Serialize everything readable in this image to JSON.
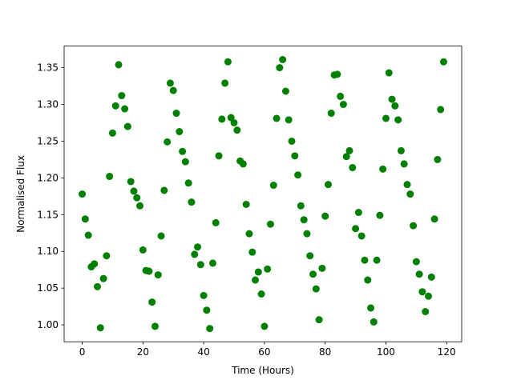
{
  "chart_data": {
    "type": "scatter",
    "xlabel": "Time (Hours)",
    "ylabel": "Normalised Flux",
    "color": "#008000",
    "xlim": [
      -5.95,
      124.95
    ],
    "ylim": [
      0.977,
      1.3794
    ],
    "xticks": [
      0,
      20,
      40,
      60,
      80,
      100,
      120
    ],
    "yticks": [
      {
        "value": 1.0,
        "label": "1.00"
      },
      {
        "value": 1.05,
        "label": "1.05"
      },
      {
        "value": 1.1,
        "label": "1.10"
      },
      {
        "value": 1.15,
        "label": "1.15"
      },
      {
        "value": 1.2,
        "label": "1.20"
      },
      {
        "value": 1.25,
        "label": "1.25"
      },
      {
        "value": 1.3,
        "label": "1.30"
      },
      {
        "value": 1.35,
        "label": "1.35"
      }
    ],
    "x": [
      0,
      1,
      2,
      3,
      4,
      5,
      6,
      7,
      8,
      9,
      10,
      11,
      12,
      13,
      14,
      15,
      16,
      17,
      18,
      19,
      20,
      21,
      22,
      23,
      24,
      25,
      26,
      27,
      28,
      29,
      30,
      31,
      32,
      33,
      34,
      35,
      36,
      37,
      38,
      39,
      40,
      41,
      42,
      43,
      44,
      45,
      46,
      47,
      48,
      49,
      50,
      51,
      52,
      53,
      54,
      55,
      56,
      57,
      58,
      59,
      60,
      61,
      62,
      63,
      64,
      65,
      66,
      67,
      68,
      69,
      70,
      71,
      72,
      73,
      74,
      75,
      76,
      77,
      78,
      79,
      80,
      81,
      82,
      83,
      84,
      85,
      86,
      87,
      88,
      89,
      90,
      91,
      92,
      93,
      94,
      95,
      96,
      97,
      98,
      99,
      100,
      101,
      102,
      103,
      104,
      105,
      106,
      107,
      108,
      109,
      110,
      111,
      112,
      113,
      114,
      115,
      116,
      117,
      118,
      119
    ],
    "values": [
      1.178,
      1.144,
      1.122,
      1.079,
      1.083,
      1.052,
      0.996,
      1.063,
      1.094,
      1.202,
      1.261,
      1.298,
      1.354,
      1.312,
      1.294,
      1.27,
      1.195,
      1.182,
      1.173,
      1.162,
      1.102,
      1.074,
      1.073,
      1.031,
      0.998,
      1.068,
      1.121,
      1.183,
      1.249,
      1.329,
      1.319,
      1.288,
      1.263,
      1.236,
      1.222,
      1.193,
      1.167,
      1.096,
      1.106,
      1.082,
      1.04,
      1.02,
      0.995,
      1.084,
      1.139,
      1.23,
      1.28,
      1.329,
      1.358,
      1.282,
      1.275,
      1.265,
      1.223,
      1.219,
      1.164,
      1.124,
      1.099,
      1.061,
      1.072,
      1.042,
      0.998,
      1.076,
      1.137,
      1.19,
      1.281,
      1.35,
      1.361,
      1.318,
      1.279,
      1.25,
      1.23,
      1.204,
      1.162,
      1.143,
      1.124,
      1.094,
      1.069,
      1.049,
      1.007,
      1.077,
      1.148,
      1.191,
      1.288,
      1.34,
      1.341,
      1.311,
      1.3,
      1.229,
      1.237,
      1.214,
      1.131,
      1.153,
      1.121,
      1.088,
      1.061,
      1.023,
      1.004,
      1.088,
      1.149,
      1.212,
      1.281,
      1.343,
      1.307,
      1.298,
      1.279,
      1.237,
      1.219,
      1.191,
      1.178,
      1.135,
      1.086,
      1.069,
      1.045,
      1.018,
      1.039,
      1.065,
      1.144,
      1.225,
      1.293,
      1.358
    ]
  }
}
